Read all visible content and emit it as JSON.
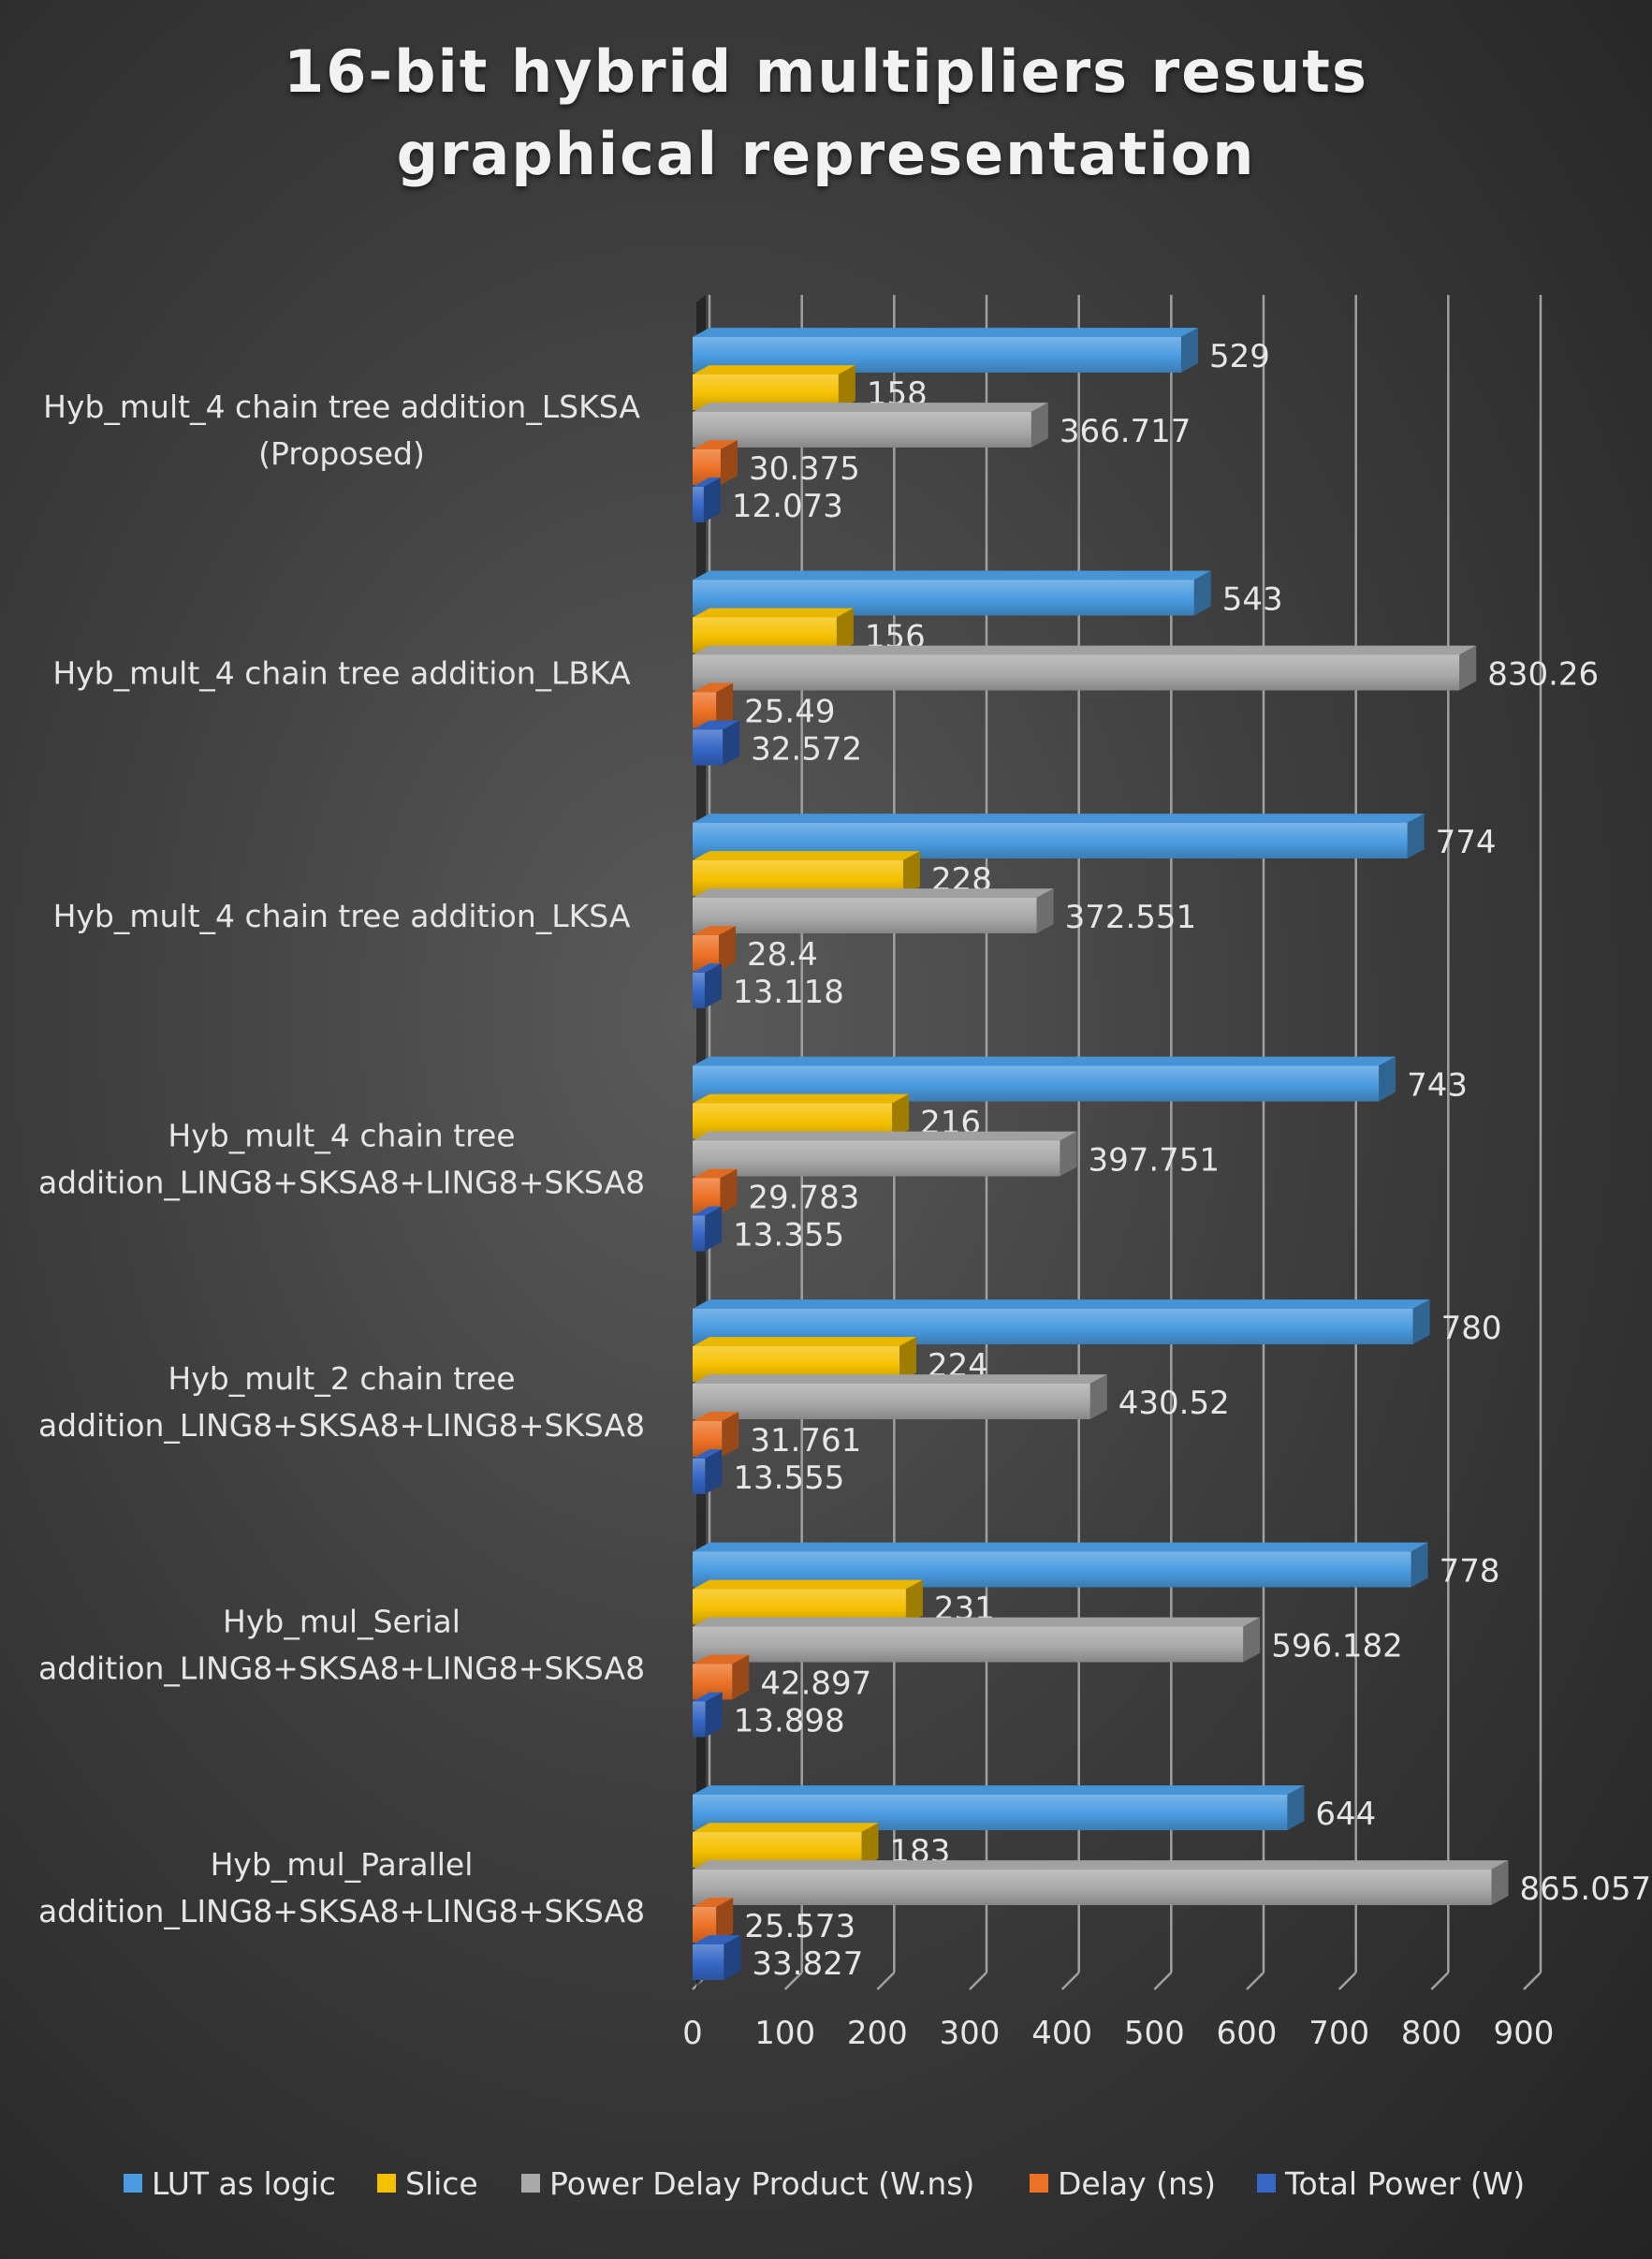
{
  "chart_data": {
    "type": "bar",
    "orientation": "horizontal",
    "style": "3d-clustered",
    "title_lines": [
      "16-bit hybrid multipliers resuts",
      "graphical representation"
    ],
    "categories": [
      [
        "Hyb_mult_4 chain tree addition_LSKSA",
        "(Proposed)"
      ],
      [
        "Hyb_mult_4 chain tree addition_LBKA"
      ],
      [
        "Hyb_mult_4 chain tree addition_LKSA"
      ],
      [
        "Hyb_mult_4 chain tree",
        "addition_LING8+SKSA8+LING8+SKSA8"
      ],
      [
        "Hyb_mult_2 chain tree",
        "addition_LING8+SKSA8+LING8+SKSA8"
      ],
      [
        "Hyb_mul_Serial",
        "addition_LING8+SKSA8+LING8+SKSA8"
      ],
      [
        "Hyb_mul_Parallel",
        "addition_LING8+SKSA8+LING8+SKSA8"
      ]
    ],
    "series": [
      {
        "name": "LUT as logic",
        "color": "#4a9be0",
        "values": [
          529,
          543,
          774,
          743,
          780,
          778,
          644
        ]
      },
      {
        "name": "Slice",
        "color": "#f5c000",
        "values": [
          158,
          156,
          228,
          216,
          224,
          231,
          183
        ]
      },
      {
        "name": "Power Delay Product (W.ns)",
        "color": "#a9a9a9",
        "values": [
          366.717,
          830.26,
          372.551,
          397.751,
          430.52,
          596.182,
          865.057
        ]
      },
      {
        "name": "Delay (ns)",
        "color": "#ec7125",
        "values": [
          30.375,
          25.49,
          28.4,
          29.783,
          31.761,
          42.897,
          25.573
        ]
      },
      {
        "name": "Total Power (W)",
        "color": "#3567c6",
        "values": [
          12.073,
          32.572,
          13.118,
          13.355,
          13.555,
          13.898,
          33.827
        ]
      }
    ],
    "data_labels": [
      [
        "529",
        "158",
        "366.717",
        "30.375",
        "12.073"
      ],
      [
        "543",
        "156",
        "830.26",
        "25.49",
        "32.572"
      ],
      [
        "774",
        "228",
        "372.551",
        "28.4",
        "13.118"
      ],
      [
        "743",
        "216",
        "397.751",
        "29.783",
        "13.355"
      ],
      [
        "780",
        "224",
        "430.52",
        "31.761",
        "13.555"
      ],
      [
        "778",
        "231",
        "596.182",
        "42.897",
        "13.898"
      ],
      [
        "644",
        "183",
        "865.057",
        "25.573",
        "33.827"
      ]
    ],
    "x_ticks": [
      "0",
      "100",
      "200",
      "300",
      "400",
      "500",
      "600",
      "700",
      "800",
      "900"
    ],
    "xlim": [
      0,
      900
    ],
    "grid": true,
    "legend_position": "bottom",
    "label_color": "#e6e6e6",
    "grid_color": "#a0a0a0"
  }
}
